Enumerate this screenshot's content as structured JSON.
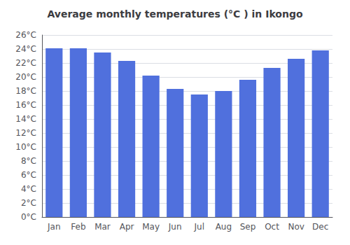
{
  "chart_data": {
    "type": "bar",
    "title": "Average monthly temperatures (°C ) in Ikongo",
    "categories": [
      "Jan",
      "Feb",
      "Mar",
      "Apr",
      "May",
      "Jun",
      "Jul",
      "Aug",
      "Sep",
      "Oct",
      "Nov",
      "Dec"
    ],
    "values": [
      24.1,
      24.1,
      23.5,
      22.3,
      20.2,
      18.3,
      17.5,
      18.0,
      19.6,
      21.3,
      22.6,
      23.8
    ],
    "ylim": [
      0,
      26
    ],
    "yticks": [
      {
        "value": 0,
        "label": "0°C"
      },
      {
        "value": 2,
        "label": "2°C"
      },
      {
        "value": 4,
        "label": "4°C"
      },
      {
        "value": 6,
        "label": "6°C"
      },
      {
        "value": 8,
        "label": "8°C"
      },
      {
        "value": 10,
        "label": "10°C"
      },
      {
        "value": 12,
        "label": "12°C"
      },
      {
        "value": 14,
        "label": "14°C"
      },
      {
        "value": 16,
        "label": "16°C"
      },
      {
        "value": 18,
        "label": "18°C"
      },
      {
        "value": 20,
        "label": "20°C"
      },
      {
        "value": 22,
        "label": "22°C"
      },
      {
        "value": 24,
        "label": "24°C"
      },
      {
        "value": 26,
        "label": "26°C"
      }
    ],
    "grid": true
  }
}
